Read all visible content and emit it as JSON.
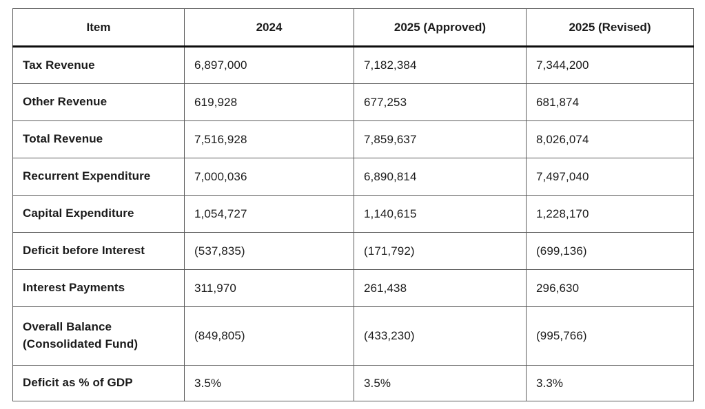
{
  "table": {
    "columns": [
      "Item",
      "2024",
      "2025 (Approved)",
      "2025 (Revised)"
    ],
    "rows": [
      {
        "item": "Tax Revenue",
        "values": [
          "6,897,000",
          "7,182,384",
          "7,344,200"
        ]
      },
      {
        "item": "Other Revenue",
        "values": [
          "619,928",
          "677,253",
          "681,874"
        ]
      },
      {
        "item": "Total Revenue",
        "values": [
          "7,516,928",
          "7,859,637",
          "8,026,074"
        ]
      },
      {
        "item": "Recurrent Expenditure",
        "values": [
          "7,000,036",
          "6,890,814",
          "7,497,040"
        ]
      },
      {
        "item": "Capital Expenditure",
        "values": [
          "1,054,727",
          "1,140,615",
          "1,228,170"
        ]
      },
      {
        "item": "Deficit before Interest",
        "values": [
          "(537,835)",
          "(171,792)",
          "(699,136)"
        ]
      },
      {
        "item": "Interest Payments",
        "values": [
          "311,970",
          "261,438",
          "296,630"
        ]
      },
      {
        "item": "Overall Balance (Consolidated Fund)",
        "values": [
          "(849,805)",
          "(433,230)",
          "(995,766)"
        ]
      },
      {
        "item": "Deficit as % of GDP",
        "values": [
          "3.5%",
          "3.5%",
          "3.3%"
        ]
      }
    ]
  }
}
